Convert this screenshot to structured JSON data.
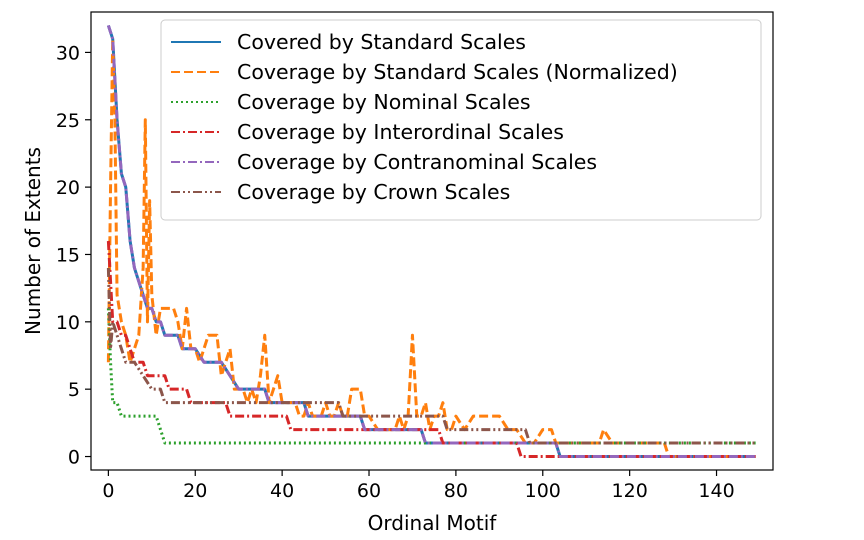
{
  "chart_data": {
    "type": "line",
    "xlabel": "Ordinal Motif",
    "ylabel": "Number of Extents",
    "xlim": [
      -4,
      153
    ],
    "ylim": [
      -1,
      33
    ],
    "xticks": [
      0,
      20,
      40,
      60,
      80,
      100,
      120,
      140
    ],
    "yticks": [
      0,
      5,
      10,
      15,
      20,
      25,
      30
    ],
    "grid": false,
    "legend_position": "upper-right",
    "series": [
      {
        "name": "Covered by Standard Scales",
        "color": "#1f77b4",
        "dash": "solid",
        "x": [
          0,
          1,
          2,
          3,
          4,
          5,
          6,
          7,
          8,
          9,
          10,
          11,
          12,
          13,
          16,
          17,
          20,
          22,
          23,
          26,
          28,
          30,
          36,
          37,
          45,
          46,
          58,
          59,
          72,
          73,
          103,
          104,
          149
        ],
        "y": [
          32,
          31,
          25,
          21,
          20,
          16,
          14,
          13,
          12,
          11,
          11,
          10,
          10,
          9,
          9,
          8,
          8,
          7,
          7,
          7,
          6,
          5,
          5,
          4,
          4,
          3,
          3,
          2,
          2,
          1,
          1,
          0,
          0
        ]
      },
      {
        "name": "Coverage by Standard Scales (Normalized)",
        "color": "#ff7f0e",
        "dash": "dashed",
        "x": [
          0,
          0.5,
          1,
          1.5,
          2,
          3,
          4,
          5,
          6,
          7,
          8,
          8.5,
          9,
          9.5,
          10,
          11,
          12,
          13,
          14,
          15,
          16,
          17,
          18,
          19,
          20,
          21,
          22,
          23,
          24,
          25,
          26,
          27,
          28,
          29,
          30,
          31,
          32,
          33,
          34,
          35,
          36,
          37,
          38,
          39,
          40,
          41,
          42,
          43,
          44,
          45,
          46,
          47,
          48,
          49,
          50,
          51,
          52,
          53,
          54,
          55,
          56,
          57,
          58,
          59,
          60,
          62,
          64,
          66,
          67,
          68,
          69,
          70,
          71,
          72,
          73,
          74,
          75,
          76,
          77,
          78,
          79,
          80,
          82,
          84,
          86,
          88,
          90,
          92,
          94,
          96,
          98,
          100,
          102,
          103,
          104,
          106,
          108,
          110,
          112,
          113,
          114,
          116,
          118,
          120,
          124,
          126,
          128,
          129,
          140,
          149
        ],
        "y": [
          7,
          20,
          31,
          25,
          12,
          10,
          9,
          7,
          8,
          9,
          14,
          25,
          10,
          19,
          12,
          9,
          11,
          11,
          11,
          11,
          10,
          8,
          11,
          8,
          8,
          7,
          8,
          9,
          9,
          9,
          6,
          7,
          8,
          5,
          5,
          5,
          4,
          5,
          4,
          6,
          9,
          4,
          5,
          6,
          4,
          4,
          4,
          4,
          3,
          3,
          4,
          3,
          3,
          3,
          4,
          3,
          3,
          4,
          3,
          3,
          5,
          5,
          5,
          3,
          3,
          2,
          2,
          2,
          3,
          2,
          3,
          9,
          3,
          3,
          4,
          2,
          3,
          3,
          4,
          2,
          2,
          3,
          2,
          3,
          3,
          3,
          3,
          2,
          2,
          1,
          1,
          2,
          2,
          1,
          1,
          1,
          1,
          1,
          1,
          1,
          2,
          1,
          1,
          1,
          1,
          1,
          1,
          0,
          0,
          0
        ]
      },
      {
        "name": "Coverage by Nominal Scales",
        "color": "#2ca02c",
        "dash": "dotted",
        "x": [
          0,
          0.5,
          1,
          2,
          3,
          4,
          10,
          11,
          12,
          13,
          14,
          149
        ],
        "y": [
          11,
          7,
          4,
          4,
          3,
          3,
          3,
          3,
          2,
          1,
          1,
          1
        ]
      },
      {
        "name": "Coverage by Interordinal Scales",
        "color": "#d62728",
        "dash": "dashdot",
        "x": [
          0,
          0.5,
          1,
          2,
          3,
          4,
          5,
          6,
          7,
          8,
          9,
          10,
          12,
          13,
          14,
          18,
          19,
          27,
          28,
          41,
          42,
          60,
          61,
          76,
          77,
          94,
          95,
          149
        ],
        "y": [
          16,
          13,
          10,
          10,
          9,
          9,
          8,
          7,
          7,
          7,
          6,
          6,
          6,
          6,
          5,
          5,
          4,
          4,
          3,
          3,
          2,
          2,
          2,
          2,
          1,
          1,
          0,
          0
        ]
      },
      {
        "name": "Coverage by Contranominal Scales",
        "color": "#9467bd",
        "dash": "dashdot",
        "x": [
          0,
          1,
          2,
          3,
          4,
          5,
          6,
          7,
          8,
          9,
          10,
          11,
          12,
          13,
          16,
          17,
          20,
          22,
          23,
          26,
          28,
          30,
          36,
          37,
          45,
          46,
          58,
          59,
          72,
          73,
          103,
          104,
          149
        ],
        "y": [
          32,
          31,
          25,
          21,
          20,
          16,
          14,
          13,
          12,
          11,
          11,
          10,
          10,
          9,
          9,
          8,
          8,
          7,
          7,
          7,
          6,
          5,
          5,
          4,
          4,
          3,
          3,
          2,
          2,
          1,
          1,
          0,
          0
        ]
      },
      {
        "name": "Coverage by Crown Scales",
        "color": "#8c564b",
        "dash": "dashdotdot",
        "x": [
          0,
          0.5,
          1,
          2,
          3,
          4,
          5,
          6,
          8,
          10,
          12,
          13,
          14,
          28,
          29,
          53,
          54,
          77,
          78,
          96,
          97,
          149
        ],
        "y": [
          14,
          8,
          10,
          9,
          8,
          7,
          7,
          7,
          6,
          5,
          5,
          4,
          4,
          4,
          4,
          4,
          3,
          3,
          2,
          2,
          1,
          1
        ]
      }
    ]
  }
}
